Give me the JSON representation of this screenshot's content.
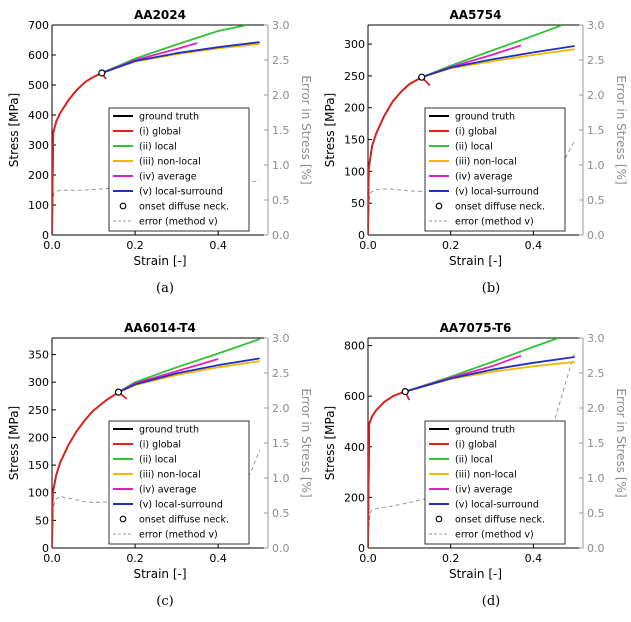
{
  "figure": {
    "captions": [
      "(a)",
      "(b)",
      "(c)",
      "(d)"
    ]
  },
  "legend_entries": [
    "ground truth",
    "(i) global",
    "(ii) local",
    "(iii) non-local",
    "(iv) average",
    "(v) local-surround",
    "onset diffuse neck.",
    "error (method v)"
  ],
  "series_colors": {
    "ground truth": "#000000",
    "(i) global": "#e8201c",
    "(ii) local": "#2ec436",
    "(iii) non-local": "#f4b800",
    "(iv) average": "#e31fc1",
    "(v) local-surround": "#2030c0",
    "onset diffuse neck.": "#000000",
    "error (method v)": "#9a9a9a"
  },
  "chart_data": [
    {
      "type": "line",
      "title": "AA2024",
      "xlabel": "Strain [-]",
      "ylabel": "Stress [MPa]",
      "y2label": "Error in Stress [%]",
      "xlim": [
        0,
        0.52
      ],
      "ylim": [
        0,
        700
      ],
      "y2lim": [
        0,
        3.0
      ],
      "xticks": [
        "0.0",
        "0.2",
        "0.4"
      ],
      "yticks": [
        "0",
        "100",
        "200",
        "300",
        "400",
        "500",
        "600",
        "700"
      ],
      "y2ticks": [
        "0.0",
        "0.5",
        "1.0",
        "1.5",
        "2.0",
        "2.5",
        "3.0"
      ],
      "legend_position": "lower center",
      "neck_onset": {
        "x": 0.12,
        "y": 540
      },
      "series": [
        {
          "name": "ground truth",
          "x": [
            0,
            0.003,
            0.01,
            0.02,
            0.04,
            0.06,
            0.08,
            0.1,
            0.12
          ],
          "y": [
            0,
            340,
            378,
            407,
            450,
            484,
            510,
            527,
            540
          ]
        },
        {
          "name": "(i) global",
          "x": [
            0,
            0.003,
            0.01,
            0.02,
            0.04,
            0.06,
            0.08,
            0.1,
            0.12,
            0.13
          ],
          "y": [
            0,
            340,
            378,
            407,
            450,
            484,
            510,
            527,
            540,
            520
          ]
        },
        {
          "name": "(ii) local",
          "x": [
            0.12,
            0.2,
            0.3,
            0.4,
            0.47
          ],
          "y": [
            540,
            588,
            635,
            680,
            700
          ]
        },
        {
          "name": "(iii) non-local",
          "x": [
            0.12,
            0.2,
            0.3,
            0.4,
            0.5
          ],
          "y": [
            540,
            578,
            603,
            622,
            637
          ]
        },
        {
          "name": "(iv) average",
          "x": [
            0.12,
            0.2,
            0.3,
            0.35
          ],
          "y": [
            540,
            583,
            620,
            640
          ]
        },
        {
          "name": "(v) local-surround",
          "x": [
            0.12,
            0.2,
            0.3,
            0.4,
            0.5
          ],
          "y": [
            540,
            580,
            606,
            626,
            643
          ]
        },
        {
          "name": "error (method v)",
          "axis": "y2",
          "x": [
            0.0,
            0.005,
            0.01,
            0.02,
            0.04,
            0.07,
            0.1,
            0.15,
            0.2,
            0.3,
            0.4,
            0.45,
            0.5
          ],
          "y": [
            0.45,
            0.6,
            0.62,
            0.64,
            0.64,
            0.64,
            0.65,
            0.67,
            0.67,
            0.68,
            0.7,
            0.72,
            0.78
          ]
        }
      ]
    },
    {
      "type": "line",
      "title": "AA5754",
      "xlabel": "Strain [-]",
      "ylabel": "Stress [MPa]",
      "y2label": "Error in Stress [%]",
      "xlim": [
        0,
        0.52
      ],
      "ylim": [
        0,
        330
      ],
      "y2lim": [
        0,
        3.0
      ],
      "xticks": [
        "0.0",
        "0.2",
        "0.4"
      ],
      "yticks": [
        "0",
        "50",
        "100",
        "150",
        "200",
        "250",
        "300"
      ],
      "y2ticks": [
        "0.0",
        "0.5",
        "1.0",
        "1.5",
        "2.0",
        "2.5",
        "3.0"
      ],
      "legend_position": "lower center",
      "neck_onset": {
        "x": 0.13,
        "y": 248
      },
      "series": [
        {
          "name": "ground truth",
          "x": [
            0,
            0.002,
            0.01,
            0.02,
            0.04,
            0.06,
            0.08,
            0.1,
            0.13
          ],
          "y": [
            0,
            105,
            140,
            160,
            188,
            210,
            225,
            237,
            248
          ]
        },
        {
          "name": "(i) global",
          "x": [
            0,
            0.002,
            0.01,
            0.02,
            0.04,
            0.06,
            0.08,
            0.1,
            0.13,
            0.15
          ],
          "y": [
            0,
            105,
            140,
            160,
            188,
            210,
            225,
            237,
            248,
            235
          ]
        },
        {
          "name": "(ii) local",
          "x": [
            0.13,
            0.2,
            0.3,
            0.4,
            0.47
          ],
          "y": [
            248,
            266,
            290,
            313,
            330
          ]
        },
        {
          "name": "(iii) non-local",
          "x": [
            0.13,
            0.2,
            0.3,
            0.4,
            0.5
          ],
          "y": [
            248,
            262,
            273,
            283,
            292
          ]
        },
        {
          "name": "(iv) average",
          "x": [
            0.13,
            0.2,
            0.3,
            0.37
          ],
          "y": [
            248,
            264,
            283,
            298
          ]
        },
        {
          "name": "(v) local-surround",
          "x": [
            0.13,
            0.2,
            0.3,
            0.4,
            0.5
          ],
          "y": [
            248,
            263,
            276,
            287,
            297
          ]
        },
        {
          "name": "error (method v)",
          "axis": "y2",
          "x": [
            0.0,
            0.005,
            0.01,
            0.02,
            0.05,
            0.1,
            0.15,
            0.2,
            0.3,
            0.35,
            0.4,
            0.45,
            0.5
          ],
          "y": [
            0.4,
            0.6,
            0.62,
            0.65,
            0.66,
            0.63,
            0.62,
            0.63,
            0.65,
            0.68,
            0.72,
            0.8,
            1.35
          ]
        }
      ]
    },
    {
      "type": "line",
      "title": "AA6014-T4",
      "xlabel": "Strain [-]",
      "ylabel": "Stress [MPa]",
      "y2label": "Error in Stress [%]",
      "xlim": [
        0,
        0.52
      ],
      "ylim": [
        0,
        380
      ],
      "y2lim": [
        0,
        3.0
      ],
      "xticks": [
        "0.0",
        "0.2",
        "0.4"
      ],
      "yticks": [
        "0",
        "50",
        "100",
        "150",
        "200",
        "250",
        "300",
        "350"
      ],
      "y2ticks": [
        "0.0",
        "0.5",
        "1.0",
        "1.5",
        "2.0",
        "2.5",
        "3.0"
      ],
      "legend_position": "lower center",
      "neck_onset": {
        "x": 0.16,
        "y": 282
      },
      "series": [
        {
          "name": "ground truth",
          "x": [
            0,
            0.002,
            0.01,
            0.02,
            0.04,
            0.06,
            0.08,
            0.1,
            0.13,
            0.16
          ],
          "y": [
            0,
            100,
            132,
            155,
            187,
            212,
            232,
            249,
            267,
            282
          ]
        },
        {
          "name": "(i) global",
          "x": [
            0,
            0.002,
            0.01,
            0.02,
            0.04,
            0.06,
            0.08,
            0.1,
            0.13,
            0.16,
            0.18
          ],
          "y": [
            0,
            100,
            132,
            155,
            187,
            212,
            232,
            249,
            267,
            282,
            270
          ]
        },
        {
          "name": "(ii) local",
          "x": [
            0.16,
            0.2,
            0.3,
            0.4,
            0.5
          ],
          "y": [
            282,
            300,
            327,
            352,
            378
          ]
        },
        {
          "name": "(iii) non-local",
          "x": [
            0.16,
            0.2,
            0.3,
            0.4,
            0.5
          ],
          "y": [
            282,
            295,
            313,
            327,
            338
          ]
        },
        {
          "name": "(iv) average",
          "x": [
            0.16,
            0.2,
            0.3,
            0.4
          ],
          "y": [
            282,
            298,
            320,
            342
          ]
        },
        {
          "name": "(v) local-surround",
          "x": [
            0.16,
            0.2,
            0.3,
            0.4,
            0.5
          ],
          "y": [
            282,
            296,
            316,
            331,
            343
          ]
        },
        {
          "name": "error (method v)",
          "axis": "y2",
          "x": [
            0.0,
            0.005,
            0.01,
            0.02,
            0.03,
            0.05,
            0.08,
            0.1,
            0.15,
            0.2,
            0.3,
            0.4,
            0.45,
            0.48,
            0.5
          ],
          "y": [
            0.5,
            0.62,
            0.7,
            0.74,
            0.72,
            0.7,
            0.66,
            0.65,
            0.66,
            0.67,
            0.7,
            0.75,
            0.8,
            1.1,
            1.4
          ]
        }
      ]
    },
    {
      "type": "line",
      "title": "AA7075-T6",
      "xlabel": "Strain [-]",
      "ylabel": "Stress [MPa]",
      "y2label": "Error in Stress [%]",
      "xlim": [
        0,
        0.52
      ],
      "ylim": [
        0,
        830
      ],
      "y2lim": [
        0,
        3.0
      ],
      "xticks": [
        "0.0",
        "0.2",
        "0.4"
      ],
      "yticks": [
        "0",
        "200",
        "400",
        "600",
        "800"
      ],
      "y2ticks": [
        "0.0",
        "0.5",
        "1.0",
        "1.5",
        "2.0",
        "2.5",
        "3.0"
      ],
      "legend_position": "lower center",
      "neck_onset": {
        "x": 0.09,
        "y": 618
      },
      "series": [
        {
          "name": "ground truth",
          "x": [
            0,
            0.003,
            0.01,
            0.02,
            0.04,
            0.06,
            0.08,
            0.09
          ],
          "y": [
            0,
            490,
            520,
            545,
            578,
            600,
            613,
            618
          ]
        },
        {
          "name": "(i) global",
          "x": [
            0,
            0.003,
            0.01,
            0.02,
            0.04,
            0.06,
            0.08,
            0.09,
            0.1
          ],
          "y": [
            0,
            490,
            520,
            545,
            578,
            600,
            613,
            618,
            585
          ]
        },
        {
          "name": "(ii) local",
          "x": [
            0.09,
            0.2,
            0.3,
            0.4,
            0.46
          ],
          "y": [
            618,
            677,
            735,
            795,
            830
          ]
        },
        {
          "name": "(iii) non-local",
          "x": [
            0.09,
            0.2,
            0.3,
            0.4,
            0.5
          ],
          "y": [
            618,
            668,
            697,
            718,
            735
          ]
        },
        {
          "name": "(iv) average",
          "x": [
            0.09,
            0.2,
            0.3,
            0.37
          ],
          "y": [
            618,
            673,
            718,
            760
          ]
        },
        {
          "name": "(v) local-surround",
          "x": [
            0.09,
            0.2,
            0.3,
            0.4,
            0.5
          ],
          "y": [
            618,
            670,
            705,
            732,
            755
          ]
        },
        {
          "name": "error (method v)",
          "axis": "y2",
          "x": [
            0.0,
            0.005,
            0.01,
            0.03,
            0.06,
            0.1,
            0.15,
            0.2,
            0.25,
            0.3,
            0.35,
            0.4,
            0.45,
            0.5
          ],
          "y": [
            0.2,
            0.5,
            0.55,
            0.57,
            0.6,
            0.65,
            0.72,
            0.78,
            0.85,
            0.9,
            1.0,
            1.2,
            1.8,
            2.8
          ]
        }
      ]
    }
  ]
}
